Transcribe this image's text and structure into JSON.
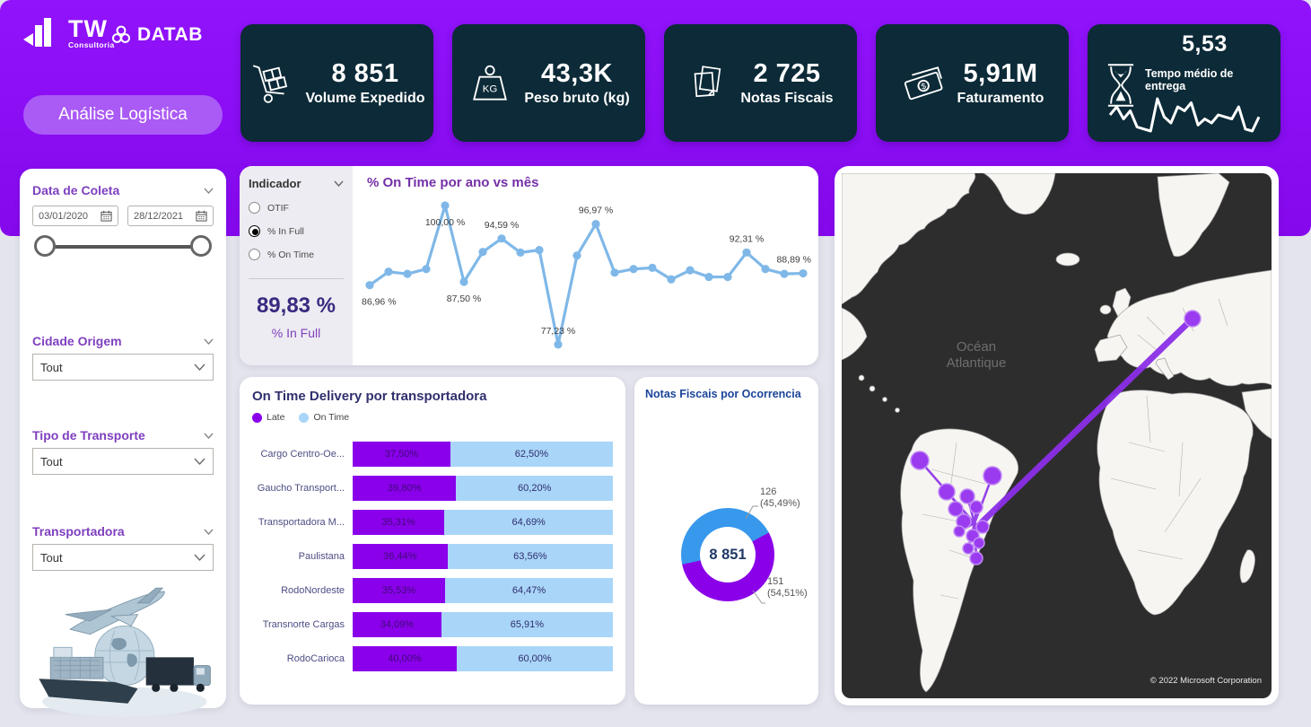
{
  "header": {
    "company": {
      "name": "TW",
      "subtitle": "Consultoria"
    },
    "brand": "DATAB",
    "page_title": "Análise Logística"
  },
  "kpis": [
    {
      "icon": "hand-truck-icon",
      "value": "8 851",
      "label": "Volume Expedido"
    },
    {
      "icon": "weight-kg-icon",
      "value": "43,3K",
      "label": "Peso bruto (kg)"
    },
    {
      "icon": "invoices-icon",
      "value": "2 725",
      "label": "Notas Fiscais"
    },
    {
      "icon": "money-icon",
      "value": "5,91M",
      "label": "Faturamento"
    },
    {
      "icon": "hourglass-icon",
      "value": "5,53",
      "label": "Tempo médio de entrega"
    }
  ],
  "filters": {
    "date": {
      "label": "Data de Coleta",
      "start": "03/01/2020",
      "end": "28/12/2021"
    },
    "city": {
      "label": "Cidade Origem",
      "value": "Tout"
    },
    "transport_type": {
      "label": "Tipo de Transporte",
      "value": "Tout"
    },
    "carrier": {
      "label": "Transportadora",
      "value": "Tout"
    }
  },
  "indicator": {
    "label": "Indicador",
    "options": [
      "OTIF",
      "% In Full",
      "% On Time"
    ],
    "selected": "% In Full",
    "big_value": "89,83 %",
    "big_label": "% In Full"
  },
  "chart_data": [
    {
      "id": "on-time-by-month",
      "type": "line",
      "title": "% On Time por ano vs mês",
      "x": [
        1,
        2,
        3,
        4,
        5,
        6,
        7,
        8,
        9,
        10,
        11,
        12,
        13,
        14,
        15,
        16,
        17,
        18,
        19,
        20,
        21,
        22,
        23,
        24
      ],
      "values": [
        86.96,
        89.15,
        88.8,
        89.6,
        100.0,
        87.5,
        92.4,
        94.59,
        92.3,
        92.7,
        77.23,
        91.8,
        96.97,
        89.0,
        89.6,
        89.8,
        87.9,
        89.4,
        88.3,
        88.3,
        92.31,
        89.6,
        88.8,
        88.89
      ],
      "point_labels": [
        {
          "index": 0,
          "text": "86,96 %",
          "pos": "below-start"
        },
        {
          "index": 4,
          "text": "100,00 %",
          "pos": "below"
        },
        {
          "index": 5,
          "text": "87,50 %",
          "pos": "below"
        },
        {
          "index": 7,
          "text": "94,59 %",
          "pos": "above"
        },
        {
          "index": 10,
          "text": "77,23 %",
          "pos": "above"
        },
        {
          "index": 12,
          "text": "96,97 %",
          "pos": "above"
        },
        {
          "index": 20,
          "text": "92,31 %",
          "pos": "above"
        },
        {
          "index": 23,
          "text": "88,89 %",
          "pos": "above-end"
        }
      ],
      "color": "#7FB8E8",
      "ylim": [
        74,
        102
      ],
      "grid": false
    },
    {
      "id": "on-time-delivery-by-carrier",
      "type": "bar",
      "orientation": "horizontal-stacked",
      "title": "On Time Delivery por transportadora",
      "legend": [
        {
          "name": "Late",
          "color": "#8A00EA"
        },
        {
          "name": "On Time",
          "color": "#A9D6F8"
        }
      ],
      "categories": [
        "Cargo Centro-Oe...",
        "Gaucho Transport...",
        "Transportadora M...",
        "Paulistana",
        "RodoNordeste",
        "Transnorte Cargas",
        "RodoCarioca"
      ],
      "series": [
        {
          "name": "Late",
          "values": [
            37.5,
            39.8,
            35.31,
            36.44,
            35.53,
            34.09,
            40.0
          ],
          "labels": [
            "37,50%",
            "39,80%",
            "35,31%",
            "36,44%",
            "35,53%",
            "34,09%",
            "40,00%"
          ]
        },
        {
          "name": "On Time",
          "values": [
            62.5,
            60.2,
            64.69,
            63.56,
            64.47,
            65.91,
            60.0
          ],
          "labels": [
            "62,50%",
            "60,20%",
            "64,69%",
            "63,56%",
            "64,47%",
            "65,91%",
            "60,00%"
          ]
        }
      ]
    },
    {
      "id": "notas-fiscais-por-ocorrencia",
      "type": "pie",
      "title": "Notas Fiscais por Ocorrencia",
      "center_label": "8 851",
      "start_angle_deg": 258,
      "slices": [
        {
          "label": "126",
          "pct_label": "(45,49%)",
          "value": 45.49,
          "color": "#3898EC"
        },
        {
          "label": "151",
          "pct_label": "(54,51%)",
          "value": 54.51,
          "color": "#8A00E8"
        }
      ]
    },
    {
      "id": "delivery-time-sparkline",
      "type": "line",
      "values": [
        22,
        30,
        18,
        26,
        10,
        8,
        6,
        38,
        20,
        14,
        30,
        26,
        34,
        12,
        18,
        14,
        22,
        20,
        18,
        30,
        8,
        6,
        20
      ],
      "color": "#FFFFFF"
    }
  ],
  "map": {
    "ocean_label_line1": "Océan",
    "ocean_label_line2": "Atlantique",
    "attribution": "© 2022 Microsoft Corporation"
  }
}
